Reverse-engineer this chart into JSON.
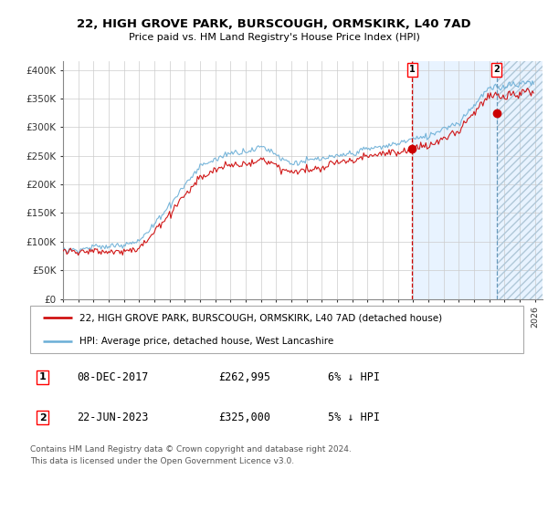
{
  "title": "22, HIGH GROVE PARK, BURSCOUGH, ORMSKIRK, L40 7AD",
  "subtitle": "Price paid vs. HM Land Registry's House Price Index (HPI)",
  "ylabel_ticks": [
    "£0",
    "£50K",
    "£100K",
    "£150K",
    "£200K",
    "£250K",
    "£300K",
    "£350K",
    "£400K"
  ],
  "ytick_vals": [
    0,
    50000,
    100000,
    150000,
    200000,
    250000,
    300000,
    350000,
    400000
  ],
  "ylim": [
    0,
    415000
  ],
  "xlim_start": 1995.0,
  "xlim_end": 2026.5,
  "hpi_color": "#6aaed6",
  "price_color": "#cc0000",
  "bg_shaded_color": "#ddeeff",
  "marker1_x": 2017.94,
  "marker1_y": 262995,
  "marker2_x": 2023.48,
  "marker2_y": 325000,
  "vline1_x": 2017.94,
  "vline2_x": 2023.48,
  "legend_label1": "22, HIGH GROVE PARK, BURSCOUGH, ORMSKIRK, L40 7AD (detached house)",
  "legend_label2": "HPI: Average price, detached house, West Lancashire",
  "note1_num": "1",
  "note1_date": "08-DEC-2017",
  "note1_price": "£262,995",
  "note1_hpi": "6% ↓ HPI",
  "note2_num": "2",
  "note2_date": "22-JUN-2023",
  "note2_price": "£325,000",
  "note2_hpi": "5% ↓ HPI",
  "footer": "Contains HM Land Registry data © Crown copyright and database right 2024.\nThis data is licensed under the Open Government Licence v3.0.",
  "xtick_years": [
    1995,
    1996,
    1997,
    1998,
    1999,
    2000,
    2001,
    2002,
    2003,
    2004,
    2005,
    2006,
    2007,
    2008,
    2009,
    2010,
    2011,
    2012,
    2013,
    2014,
    2015,
    2016,
    2017,
    2018,
    2019,
    2020,
    2021,
    2022,
    2023,
    2024,
    2025,
    2026
  ]
}
